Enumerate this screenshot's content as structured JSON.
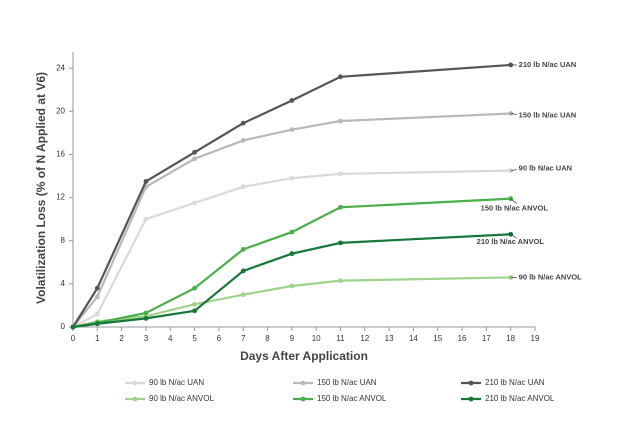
{
  "chart_data": {
    "type": "line",
    "x_label": "Days After Application",
    "y_label": "Volatilization Loss (% of N Applied at V6)",
    "x": [
      0,
      1,
      3,
      5,
      7,
      9,
      11,
      18
    ],
    "xlim": [
      0,
      19
    ],
    "xticks": [
      0,
      1,
      2,
      3,
      4,
      5,
      6,
      7,
      8,
      9,
      10,
      11,
      12,
      13,
      14,
      15,
      16,
      17,
      18,
      19
    ],
    "ylim": [
      0,
      25.5
    ],
    "yticks": [
      0,
      4,
      8,
      12,
      16,
      20,
      24
    ],
    "series": [
      {
        "name": "90 lb N/ac UAN",
        "color": "#d9d9d9",
        "values": [
          0,
          1.2,
          10.0,
          11.5,
          13.0,
          13.8,
          14.2,
          14.5
        ]
      },
      {
        "name": "150 lb N/ac UAN",
        "color": "#b8b8b8",
        "values": [
          0,
          2.8,
          13.0,
          15.6,
          17.3,
          18.3,
          19.1,
          19.8
        ]
      },
      {
        "name": "210 lb N/ac UAN",
        "color": "#555555",
        "values": [
          0,
          3.6,
          13.5,
          16.2,
          18.9,
          21.0,
          23.2,
          24.3
        ]
      },
      {
        "name": "90 lb N/ac ANVOL",
        "color": "#9fd28c",
        "values": [
          0,
          0.5,
          1.0,
          2.1,
          3.0,
          3.8,
          4.3,
          4.6
        ]
      },
      {
        "name": "150 lb N/ac ANVOL",
        "color": "#4aae4a",
        "values": [
          0,
          0.4,
          1.3,
          3.6,
          7.2,
          8.8,
          11.1,
          11.9
        ]
      },
      {
        "name": "210 lb N/ac ANVOL",
        "color": "#17773a",
        "values": [
          0,
          0.3,
          0.8,
          1.5,
          5.2,
          6.8,
          7.8,
          8.6
        ]
      }
    ]
  }
}
